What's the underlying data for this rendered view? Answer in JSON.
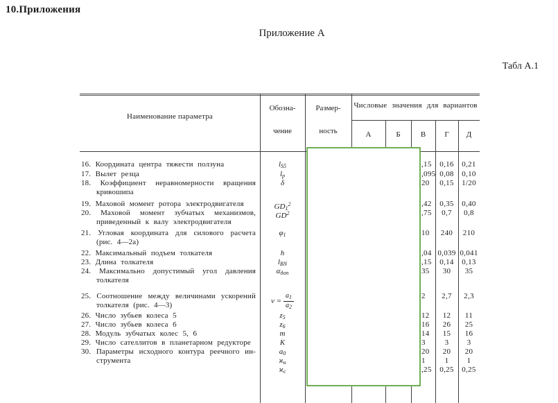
{
  "page": {
    "section_title": "10.Приложения",
    "appendix_title": "Приложение А",
    "table_caption": "Табл А.1"
  },
  "table": {
    "header": {
      "col_name": "Наименование параметра",
      "col_sym_l1": "Обозна-",
      "col_sym_l2": "чение",
      "col_dim_l1": "Размер-",
      "col_dim_l2": "ность",
      "variants_title": "Числовые значения для вариантов",
      "variant_cols": [
        "А",
        "Б",
        "В",
        "Г",
        "Д"
      ]
    },
    "rows": [
      {
        "num": "16.",
        "lines": [
          "Координата центра тяжести ползуна"
        ],
        "syms": [
          {
            "b": "l",
            "sub": "S5"
          }
        ],
        "vals": [
          {
            "v": ",15",
            "g": "0,16",
            "d": "0,21"
          }
        ],
        "mt": 0
      },
      {
        "num": "17.",
        "lines": [
          "Вылет резца"
        ],
        "syms": [
          {
            "b": "l",
            "sub": "р"
          }
        ],
        "vals": [
          {
            "v": ",095",
            "g": "0,08",
            "d": "0,10"
          }
        ],
        "mt": 1
      },
      {
        "num": "18.",
        "lines": [
          "Коэффициент неравномерности вращения",
          "кривошипа"
        ],
        "syms": [
          {
            "b": "δ"
          }
        ],
        "vals": [
          {
            "v": "20",
            "g": "0,15",
            "d": "1/20"
          }
        ],
        "mt": 0
      },
      {
        "num": "19.",
        "lines": [
          "Маховой момент ротора электродвигателя"
        ],
        "syms": [
          {
            "b": "GD",
            "sub": "1",
            "sup": "2"
          }
        ],
        "vals": [
          {
            "v": ",42",
            "g": "0,35",
            "d": "0,40"
          }
        ],
        "mt": 4
      },
      {
        "num": "20.",
        "lines": [
          "Маховой момент зубчатых механизмов,",
          "приведенный к валу электродвигателя"
        ],
        "syms": [
          {
            "b": "GD",
            "sup": "2"
          }
        ],
        "vals": [
          {
            "v": ",75",
            "g": "0,7",
            "d": "0,8"
          }
        ],
        "mt": 0
      },
      {
        "num": "21.",
        "lines": [
          "Угловая координата для силового расчета",
          "(рис. 4—2а)"
        ],
        "syms": [
          {
            "b": "φ",
            "sub": "1"
          }
        ],
        "vals": [
          {
            "v": "10",
            "g": "240",
            "d": "210"
          }
        ],
        "mt": 3
      },
      {
        "num": "22.",
        "lines": [
          "Максимальный подъем толкателя"
        ],
        "syms": [
          {
            "b": "h"
          }
        ],
        "vals": [
          {
            "v": ",04",
            "g": "0,039",
            "d": "0,041"
          }
        ],
        "mt": 3
      },
      {
        "num": "23.",
        "lines": [
          "Длина толкателя"
        ],
        "syms": [
          {
            "b": "l",
            "sub": "BN"
          }
        ],
        "vals": [
          {
            "v": ",15",
            "g": "0,14",
            "d": "0,13"
          }
        ],
        "mt": 0
      },
      {
        "num": "24.",
        "lines": [
          "Максимально допустимый угол давления",
          "толкателя"
        ],
        "syms": [
          {
            "b": "α",
            "sub": "доп"
          }
        ],
        "vals": [
          {
            "v": "35",
            "g": "30",
            "d": "35"
          }
        ],
        "mt": 0
      },
      {
        "num": "25.",
        "lines": [
          "Соотношение между величинами ускорений",
          "толкателя (рис. 4—3)"
        ],
        "frac": {
          "prefix": "ν =",
          "num_b": "a",
          "num_sub": "1",
          "den_b": "a",
          "den_sub": "2"
        },
        "vals": [
          {
            "v": "2",
            "g": "2,7",
            "d": "2,3"
          }
        ],
        "mt": 10
      },
      {
        "num": "26.",
        "lines": [
          "Число зубьев колеса 5"
        ],
        "syms": [
          {
            "b": "z",
            "sub": "5"
          }
        ],
        "vals": [
          {
            "v": "12",
            "g": "12",
            "d": "11"
          }
        ],
        "mt": 2
      },
      {
        "num": "27.",
        "lines": [
          "Число зубьев колеса 6"
        ],
        "syms": [
          {
            "b": "z",
            "sub": "6"
          }
        ],
        "vals": [
          {
            "v": "16",
            "g": "26",
            "d": "25"
          }
        ],
        "mt": 0
      },
      {
        "num": "28.",
        "lines": [
          "Модуль зубчатых колес 5, 6"
        ],
        "syms": [
          {
            "b": "m"
          }
        ],
        "vals": [
          {
            "v": "14",
            "g": "15",
            "d": "16"
          }
        ],
        "mt": 0
      },
      {
        "num": "29.",
        "lines": [
          "Число сателлитов в планетарном редукторе"
        ],
        "syms": [
          {
            "b": "K"
          }
        ],
        "vals": [
          {
            "v": "3",
            "g": "3",
            "d": "3"
          }
        ],
        "mt": 0
      },
      {
        "num": "30.",
        "lines": [
          "Параметры исходного контура реечного ин-",
          "струмента"
        ],
        "syms": [
          {
            "b": "a",
            "sub": "0"
          },
          {
            "b": "ϰ",
            "sub": "н"
          },
          {
            "b": "ϰ",
            "sub": "с"
          }
        ],
        "vals": [
          {
            "v": "20",
            "g": "20",
            "d": "20"
          },
          {
            "v": "1",
            "g": "1",
            "d": "1"
          },
          {
            "v": ",25",
            "g": "0,25",
            "d": "0,25"
          }
        ],
        "mt": 0
      }
    ]
  },
  "overlay": {
    "border_color": "#6fae52"
  }
}
